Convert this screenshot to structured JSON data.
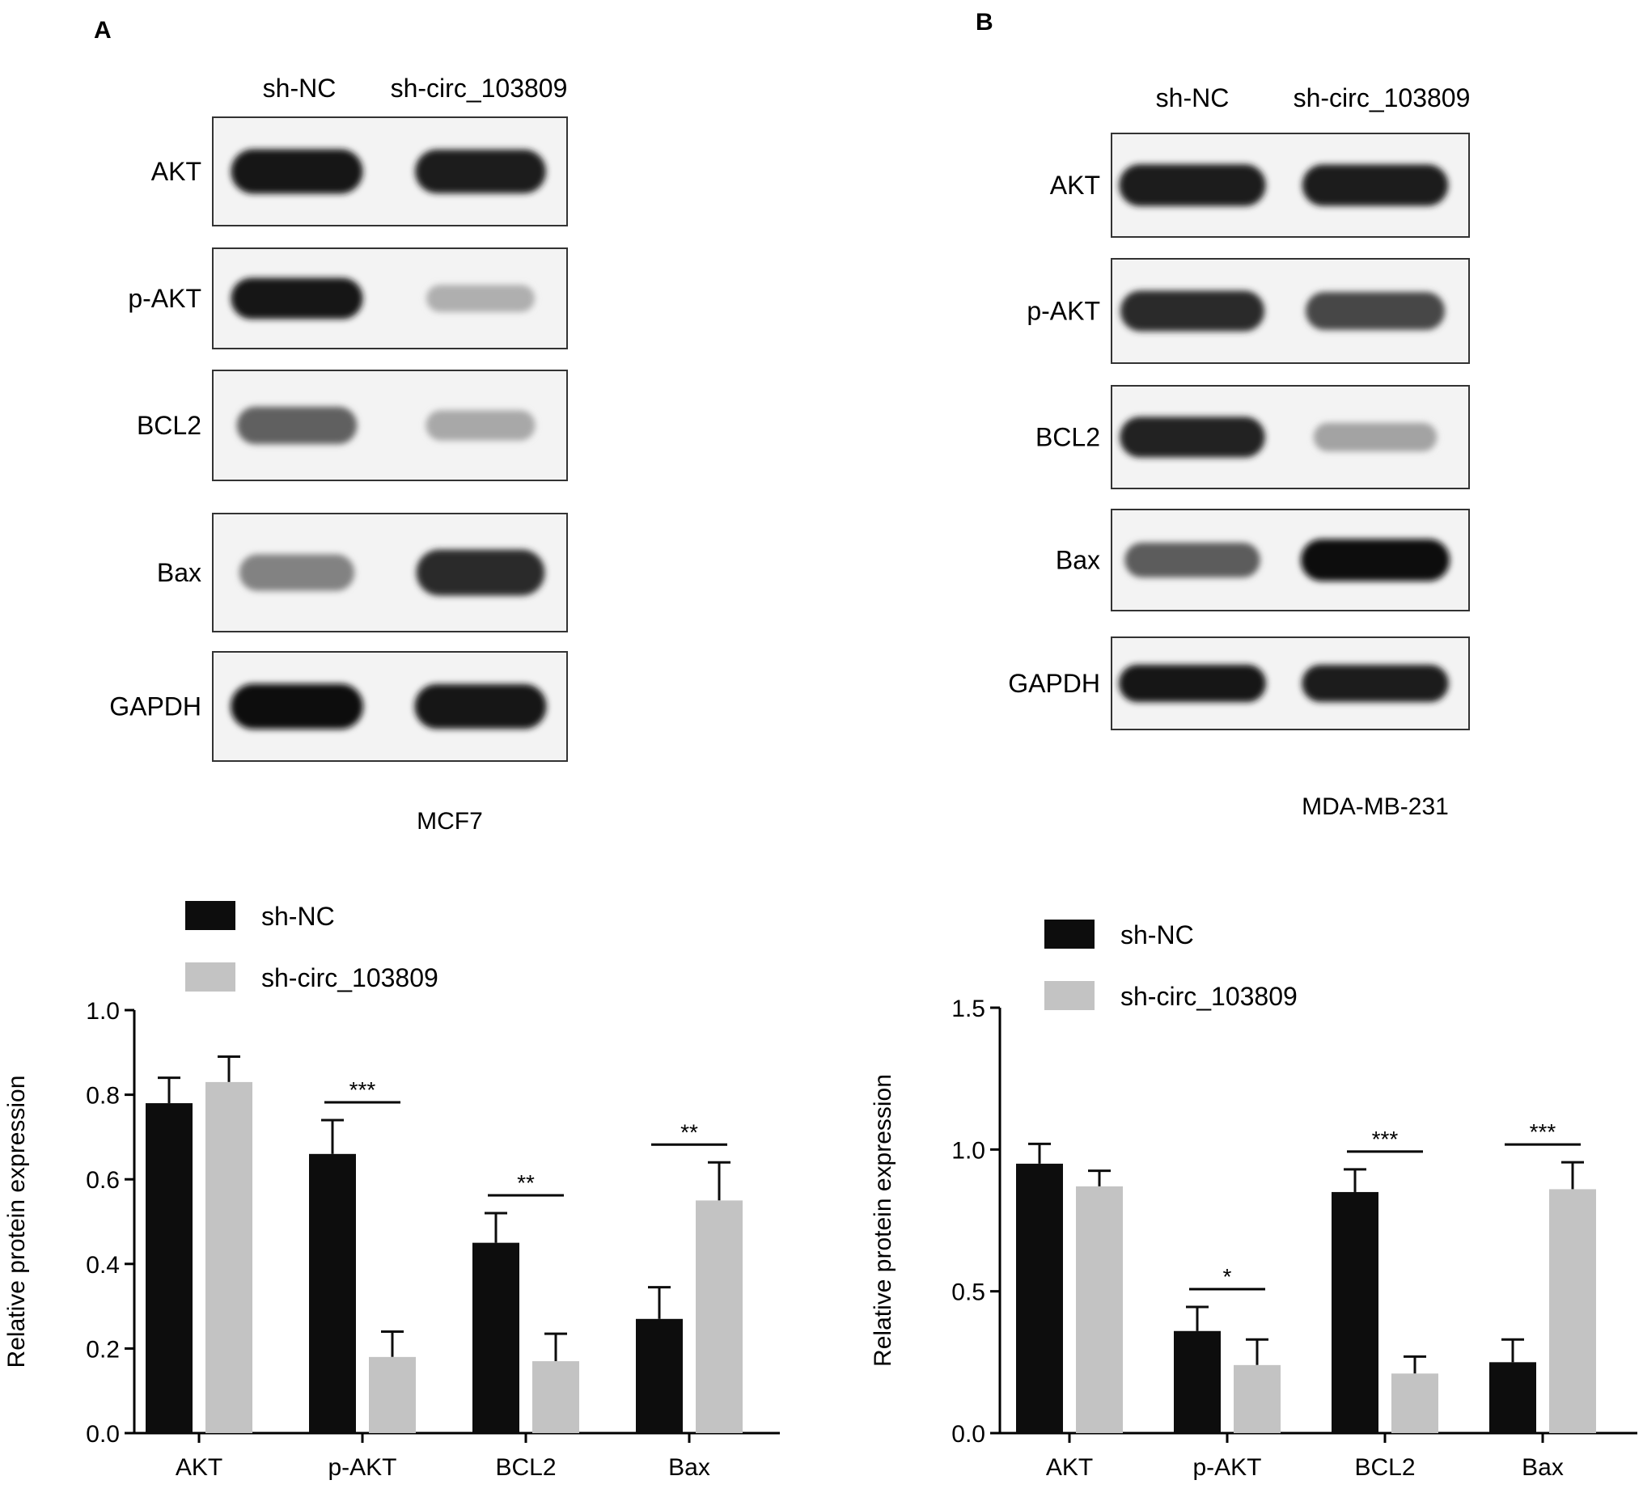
{
  "panels": [
    {
      "letter": "A",
      "cell_line": "MCF7",
      "lanes": [
        "sh-NC",
        "sh-circ_103809"
      ],
      "bands": [
        {
          "label": "AKT",
          "intensity": [
            0.95,
            0.92
          ]
        },
        {
          "label": "p-AKT",
          "intensity": [
            0.95,
            0.25
          ]
        },
        {
          "label": "BCL2",
          "intensity": [
            0.6,
            0.28
          ]
        },
        {
          "label": "Bax",
          "intensity": [
            0.45,
            0.85
          ]
        },
        {
          "label": "GAPDH",
          "intensity": [
            0.97,
            0.95
          ]
        }
      ]
    },
    {
      "letter": "B",
      "cell_line": "MDA-MB-231",
      "lanes": [
        "sh-NC",
        "sh-circ_103809"
      ],
      "bands": [
        {
          "label": "AKT",
          "intensity": [
            0.92,
            0.9
          ]
        },
        {
          "label": "p-AKT",
          "intensity": [
            0.85,
            0.72
          ]
        },
        {
          "label": "BCL2",
          "intensity": [
            0.88,
            0.3
          ]
        },
        {
          "label": "Bax",
          "intensity": [
            0.62,
            0.98
          ]
        },
        {
          "label": "GAPDH",
          "intensity": [
            0.93,
            0.92
          ]
        }
      ]
    }
  ],
  "colors": {
    "sh_nc": "#0d0d0d",
    "sh_circ": "#c3c3c3",
    "blot_bg": "#f3f3f3"
  },
  "chart_data": [
    {
      "type": "bar",
      "categories": [
        "AKT",
        "p-AKT",
        "BCL2",
        "Bax"
      ],
      "series": [
        {
          "name": "sh-NC",
          "values": [
            0.78,
            0.66,
            0.45,
            0.27
          ],
          "errors": [
            0.06,
            0.08,
            0.07,
            0.075
          ]
        },
        {
          "name": "sh-circ_103809",
          "values": [
            0.83,
            0.18,
            0.17,
            0.55
          ],
          "errors": [
            0.06,
            0.06,
            0.065,
            0.09
          ]
        }
      ],
      "ylabel": "Relative protein expression",
      "ylim": [
        0,
        1.0
      ],
      "yticks": [
        "0.0",
        "0.2",
        "0.4",
        "0.6",
        "0.8",
        "1.0"
      ],
      "legend": "top-left",
      "significance": [
        "",
        "***",
        "**",
        "**"
      ],
      "grid": false
    },
    {
      "type": "bar",
      "categories": [
        "AKT",
        "p-AKT",
        "BCL2",
        "Bax"
      ],
      "series": [
        {
          "name": "sh-NC",
          "values": [
            0.95,
            0.36,
            0.85,
            0.25
          ],
          "errors": [
            0.07,
            0.085,
            0.08,
            0.08
          ]
        },
        {
          "name": "sh-circ_103809",
          "values": [
            0.87,
            0.24,
            0.21,
            0.86
          ],
          "errors": [
            0.055,
            0.09,
            0.06,
            0.095
          ]
        }
      ],
      "ylabel": "Relative protein expression",
      "ylim": [
        0,
        1.5
      ],
      "yticks": [
        "0.0",
        "0.5",
        "1.0",
        "1.5"
      ],
      "legend": "top-left",
      "significance": [
        "",
        "*",
        "***",
        "***"
      ],
      "grid": false
    }
  ]
}
